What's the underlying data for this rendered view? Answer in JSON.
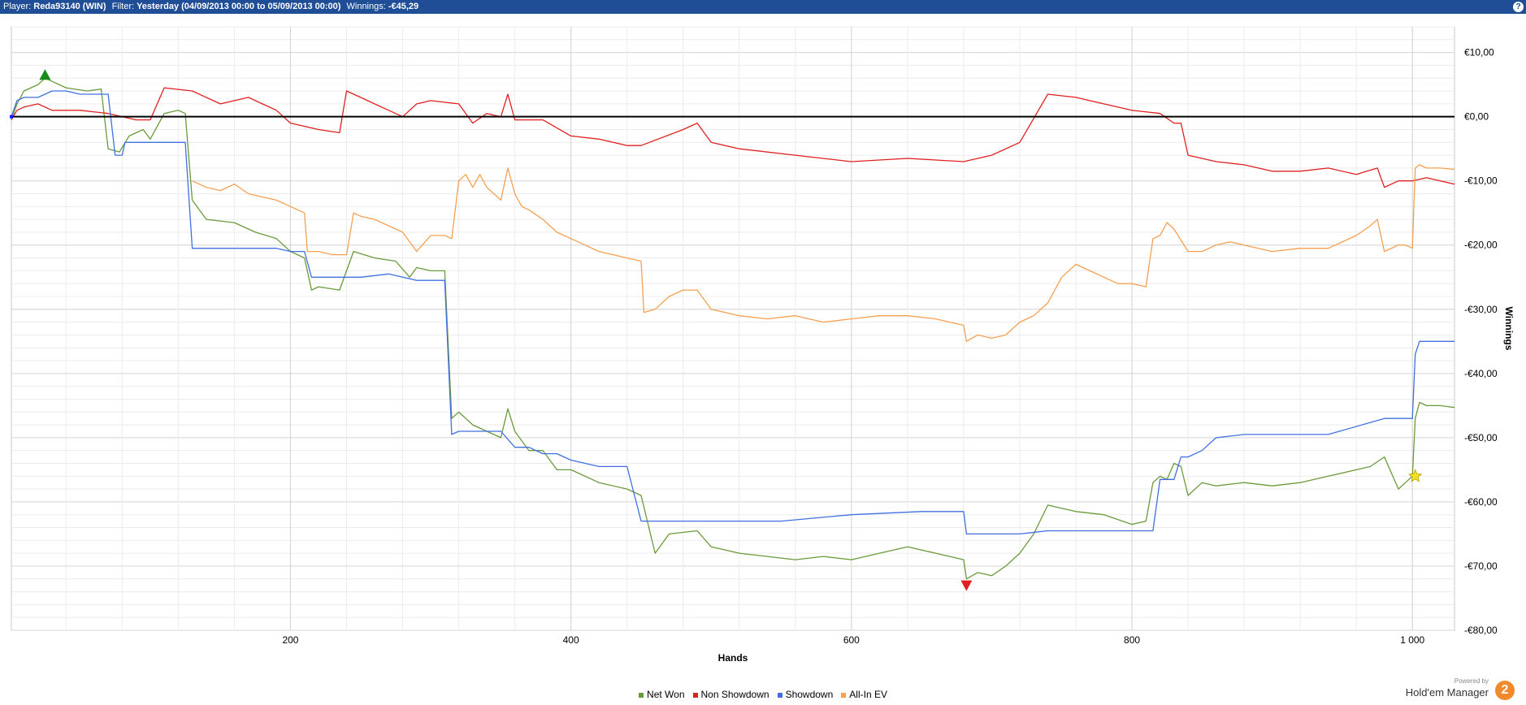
{
  "header": {
    "player_label": "Player:",
    "player_value": "Reda93140 (WIN)",
    "filter_label": "Filter:",
    "filter_value": "Yesterday (04/09/2013 00:00 to 05/09/2013 00:00)",
    "winnings_label": "Winnings:",
    "winnings_value": "-€45,29",
    "help_label": "?"
  },
  "brand": {
    "powered_by": "Powered by",
    "name": "Hold'em Manager",
    "logo": "2"
  },
  "chart_data": {
    "type": "line",
    "xlabel": "Hands",
    "ylabel": "Winnings",
    "xlim": [
      1,
      1030
    ],
    "ylim": [
      -80,
      14
    ],
    "xticks": [
      200,
      400,
      600,
      800,
      1000
    ],
    "xtick_labels": [
      "200",
      "400",
      "600",
      "800",
      "1 000"
    ],
    "yticks": [
      10,
      0,
      -10,
      -20,
      -30,
      -40,
      -50,
      -60,
      -70,
      -80
    ],
    "ytick_labels": [
      "€10,00",
      "€0,00",
      "-€10,00",
      "-€20,00",
      "-€30,00",
      "-€40,00",
      "-€50,00",
      "-€60,00",
      "-€70,00",
      "-€80,00"
    ],
    "grid": true,
    "legend_position": "bottom",
    "series": [
      {
        "name": "Net Won",
        "color": "#6a9a3a",
        "x": [
          1,
          5,
          10,
          20,
          25,
          30,
          40,
          55,
          65,
          70,
          78,
          85,
          95,
          100,
          110,
          120,
          125,
          130,
          140,
          160,
          175,
          190,
          200,
          210,
          215,
          220,
          235,
          245,
          260,
          275,
          285,
          290,
          300,
          310,
          315,
          320,
          330,
          340,
          350,
          355,
          360,
          370,
          380,
          390,
          400,
          420,
          440,
          450,
          460,
          470,
          490,
          500,
          520,
          540,
          560,
          580,
          600,
          620,
          640,
          660,
          670,
          680,
          682,
          690,
          700,
          710,
          720,
          730,
          740,
          760,
          780,
          800,
          810,
          815,
          820,
          825,
          830,
          835,
          840,
          850,
          860,
          880,
          900,
          920,
          940,
          960,
          970,
          980,
          990,
          995,
          1000,
          1002,
          1005,
          1010,
          1020,
          1030
        ],
        "values": [
          -0.5,
          2,
          4,
          5,
          6,
          5.5,
          4.5,
          4,
          4.3,
          -5,
          -5.5,
          -3,
          -2,
          -3.5,
          0.5,
          1,
          0.5,
          -13,
          -16,
          -16.5,
          -18,
          -19,
          -21,
          -22,
          -27,
          -26.5,
          -27,
          -21,
          -22,
          -22.5,
          -25,
          -23.5,
          -24,
          -24,
          -47,
          -46,
          -48,
          -49,
          -50,
          -45.5,
          -49,
          -52,
          -52,
          -55,
          -55,
          -57,
          -58,
          -59,
          -68,
          -65,
          -64.5,
          -67,
          -68,
          -68.5,
          -69,
          -68.5,
          -69,
          -68,
          -67,
          -68,
          -68.5,
          -69,
          -72,
          -71,
          -71.5,
          -70,
          -68,
          -65,
          -60.5,
          -61.5,
          -62,
          -63.5,
          -63,
          -57,
          -56,
          -56.5,
          -54,
          -54.5,
          -59,
          -57,
          -57.5,
          -57,
          -57.5,
          -57,
          -56,
          -55,
          -54.5,
          -53,
          -58,
          -57,
          -56,
          -47,
          -44.5,
          -45,
          -45,
          -45.3
        ]
      },
      {
        "name": "Non Showdown",
        "color": "#e02020",
        "x": [
          1,
          5,
          10,
          20,
          30,
          50,
          70,
          90,
          100,
          110,
          130,
          150,
          170,
          180,
          190,
          200,
          210,
          220,
          235,
          240,
          250,
          260,
          270,
          280,
          290,
          300,
          320,
          330,
          340,
          350,
          355,
          360,
          380,
          400,
          420,
          440,
          450,
          480,
          490,
          500,
          520,
          560,
          600,
          640,
          680,
          700,
          720,
          740,
          760,
          780,
          800,
          820,
          830,
          835,
          840,
          860,
          880,
          900,
          920,
          940,
          960,
          975,
          980,
          990,
          1000,
          1010,
          1020,
          1030
        ],
        "values": [
          -0.5,
          1,
          1.5,
          2,
          1,
          1,
          0.5,
          -0.5,
          -0.5,
          4.5,
          4,
          2,
          3,
          2,
          1,
          -1,
          -1.5,
          -2,
          -2.5,
          4,
          3,
          2,
          1,
          0,
          2,
          2.5,
          2,
          -1,
          0.5,
          0,
          3.5,
          -0.5,
          -0.5,
          -3,
          -3.5,
          -4.5,
          -4.5,
          -2,
          -1,
          -4,
          -5,
          -6,
          -7,
          -6.5,
          -7,
          -6,
          -4,
          3.5,
          3,
          2,
          1,
          0.5,
          -1,
          -1,
          -6,
          -7,
          -7.5,
          -8.5,
          -8.5,
          -8,
          -9,
          -8,
          -11,
          -10,
          -10,
          -9.5,
          -10,
          -10.5
        ]
      },
      {
        "name": "Showdown",
        "color": "#4070e0",
        "x": [
          1,
          5,
          10,
          20,
          30,
          40,
          50,
          60,
          70,
          75,
          80,
          82,
          90,
          100,
          110,
          120,
          125,
          130,
          140,
          150,
          170,
          190,
          200,
          210,
          215,
          230,
          250,
          270,
          290,
          300,
          310,
          315,
          320,
          330,
          350,
          360,
          370,
          380,
          390,
          400,
          420,
          440,
          450,
          460,
          480,
          500,
          550,
          600,
          650,
          680,
          682,
          700,
          720,
          740,
          760,
          780,
          800,
          810,
          815,
          820,
          830,
          835,
          840,
          850,
          860,
          880,
          900,
          940,
          980,
          1000,
          1002,
          1005,
          1020,
          1030
        ],
        "values": [
          0,
          2.5,
          3,
          3,
          4,
          4,
          3.5,
          3.5,
          3.5,
          -6,
          -6,
          -4,
          -4,
          -4,
          -4,
          -4,
          -4,
          -20.5,
          -20.5,
          -20.5,
          -20.5,
          -20.5,
          -21,
          -21,
          -25,
          -25,
          -25,
          -24.5,
          -25.5,
          -25.5,
          -25.5,
          -49.5,
          -49,
          -49,
          -49,
          -51.5,
          -51.5,
          -52.5,
          -52.5,
          -53.5,
          -54.5,
          -54.5,
          -63,
          -63,
          -63,
          -63,
          -63,
          -62,
          -61.5,
          -61.5,
          -65,
          -65,
          -65,
          -64.5,
          -64.5,
          -64.5,
          -64.5,
          -64.5,
          -64.5,
          -56.5,
          -56.5,
          -53,
          -53,
          -52,
          -50,
          -49.5,
          -49.5,
          -49.5,
          -47,
          -47,
          -37,
          -35,
          -35,
          -35
        ]
      },
      {
        "name": "All-In EV",
        "color": "#f5a050",
        "x": [
          130,
          140,
          150,
          160,
          170,
          180,
          190,
          200,
          210,
          212,
          220,
          230,
          240,
          245,
          250,
          260,
          270,
          280,
          290,
          300,
          310,
          315,
          320,
          325,
          330,
          335,
          340,
          345,
          350,
          355,
          360,
          365,
          370,
          380,
          390,
          400,
          410,
          420,
          430,
          440,
          450,
          452,
          460,
          470,
          480,
          490,
          500,
          520,
          540,
          560,
          580,
          600,
          620,
          640,
          660,
          670,
          680,
          682,
          690,
          700,
          710,
          720,
          730,
          740,
          750,
          760,
          770,
          780,
          790,
          800,
          810,
          815,
          820,
          825,
          830,
          840,
          850,
          860,
          870,
          880,
          890,
          900,
          920,
          940,
          960,
          970,
          975,
          980,
          990,
          995,
          1000,
          1002,
          1005,
          1010,
          1020,
          1030
        ],
        "values": [
          -10,
          -11,
          -11.5,
          -10.5,
          -12,
          -12.5,
          -13,
          -14,
          -15,
          -21,
          -21,
          -21.5,
          -21.5,
          -15,
          -15.5,
          -16,
          -17,
          -18,
          -21,
          -18.5,
          -18.5,
          -19,
          -10,
          -9,
          -11,
          -9,
          -11,
          -12,
          -13,
          -8,
          -12,
          -14,
          -14.5,
          -16,
          -18,
          -19,
          -20,
          -21,
          -21.5,
          -22,
          -22.5,
          -30.5,
          -30,
          -28,
          -27,
          -27,
          -30,
          -31,
          -31.5,
          -31,
          -32,
          -31.5,
          -31,
          -31,
          -31.5,
          -32,
          -32.5,
          -35,
          -34,
          -34.5,
          -34,
          -32,
          -31,
          -29,
          -25,
          -23,
          -24,
          -25,
          -26,
          -26,
          -26.5,
          -19,
          -18.5,
          -16.5,
          -17.5,
          -21,
          -21,
          -20,
          -19.5,
          -20,
          -20.5,
          -21,
          -20.5,
          -20.5,
          -18.5,
          -17,
          -16,
          -21,
          -20,
          -20,
          -20.5,
          -8,
          -7.5,
          -8,
          -8,
          -8.2
        ]
      }
    ],
    "markers": [
      {
        "name": "peak-marker",
        "x": 25,
        "y": 6.5,
        "shape": "triangle-up",
        "color": "#1a8a1a"
      },
      {
        "name": "trough-marker",
        "x": 682,
        "y": -73,
        "shape": "triangle-down",
        "color": "#e02020"
      },
      {
        "name": "current-marker",
        "x": 1002,
        "y": -56,
        "shape": "star",
        "color": "#f5e020"
      }
    ]
  }
}
